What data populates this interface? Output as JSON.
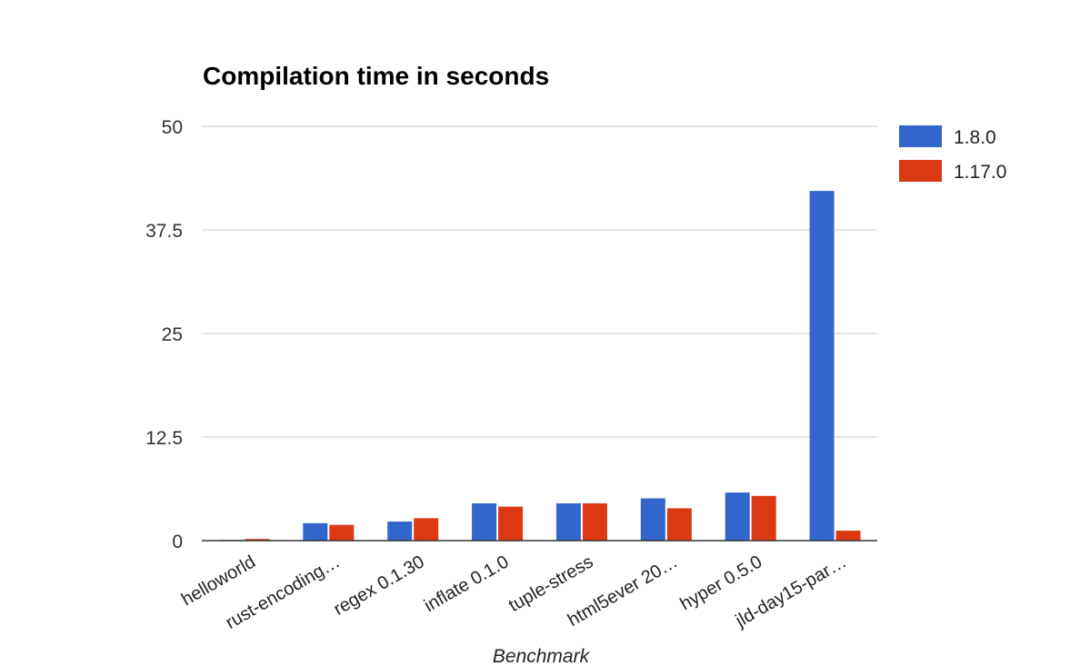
{
  "chart_data": {
    "type": "bar",
    "title": "Compilation time in seconds",
    "xlabel": "Benchmark",
    "ylabel": "",
    "ylim": [
      0,
      50
    ],
    "yticks": [
      "0",
      "12.5",
      "25",
      "37.5",
      "50"
    ],
    "grid": true,
    "legend_position": "right",
    "categories": [
      "helloworld",
      "rust-encoding…",
      "regex 0.1.30",
      "inflate 0.1.0",
      "tuple-stress",
      "html5ever 20…",
      "hyper 0.5.0",
      "jld-day15-par…"
    ],
    "series": [
      {
        "name": "1.8.0",
        "color": "#3366cc",
        "values": [
          0.05,
          2.1,
          2.3,
          4.5,
          4.5,
          5.1,
          5.8,
          42.2
        ]
      },
      {
        "name": "1.17.0",
        "color": "#dc3912",
        "values": [
          0.2,
          1.9,
          2.7,
          4.1,
          4.5,
          3.9,
          5.4,
          1.2
        ]
      }
    ]
  }
}
